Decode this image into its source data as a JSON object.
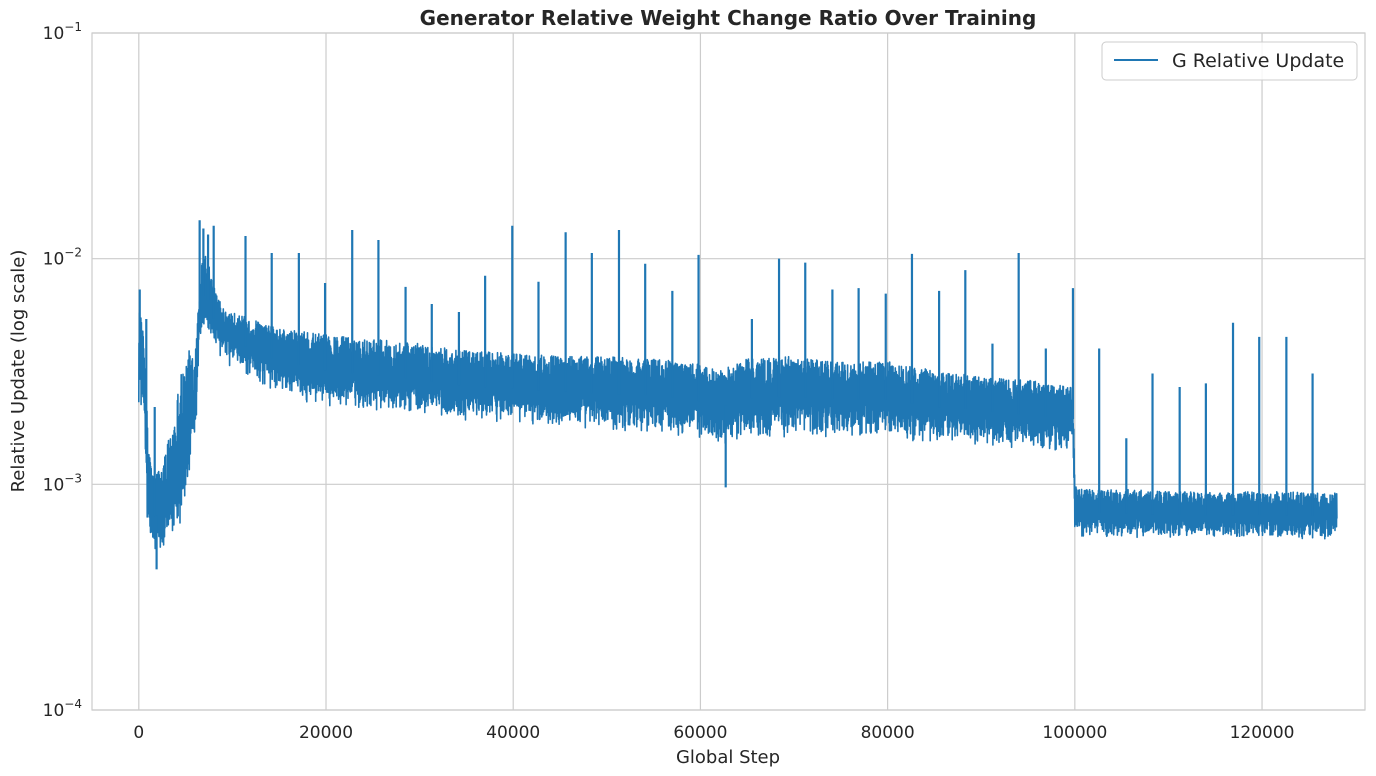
{
  "chart_data": {
    "type": "line",
    "title": "Generator Relative Weight Change Ratio Over Training",
    "xlabel": "Global Step",
    "ylabel": "Relative Update (log scale)",
    "xlim": [
      -5000,
      131000
    ],
    "ylim": [
      0.0001,
      0.1
    ],
    "yscale": "log",
    "grid": true,
    "legend_position": "top-right",
    "x_ticks": [
      0,
      20000,
      40000,
      60000,
      80000,
      100000,
      120000
    ],
    "x_tick_labels": [
      "0",
      "20000",
      "40000",
      "60000",
      "80000",
      "100000",
      "120000"
    ],
    "y_ticks": [
      0.0001,
      0.001,
      0.01,
      0.1
    ],
    "y_tick_labels": [
      {
        "base": "10",
        "exp": "−4"
      },
      {
        "base": "10",
        "exp": "−3"
      },
      {
        "base": "10",
        "exp": "−2"
      },
      {
        "base": "10",
        "exp": "−1"
      }
    ],
    "colors": {
      "series": "#1f77b4",
      "grid": "#cccccc",
      "spine": "#cccccc"
    },
    "series": [
      {
        "name": "G Relative Update",
        "band": {
          "x": [
            0,
            300,
            600,
            1000,
            1500,
            2000,
            2500,
            3000,
            3500,
            4000,
            4500,
            5000,
            5500,
            6000,
            6500,
            7000,
            7500,
            8000,
            9000,
            10000,
            12000,
            15000,
            20000,
            25000,
            30000,
            35000,
            40000,
            45000,
            50000,
            55000,
            60000,
            62000,
            65000,
            70000,
            75000,
            80000,
            85000,
            90000,
            95000,
            99800,
            100000,
            100500,
            105000,
            110000,
            115000,
            120000,
            125000,
            128000
          ],
          "upper": [
            0.0068,
            0.0055,
            0.004,
            0.0016,
            0.0011,
            0.00115,
            0.0012,
            0.0015,
            0.0018,
            0.0022,
            0.0035,
            0.0033,
            0.0042,
            0.0038,
            0.0085,
            0.011,
            0.0095,
            0.0075,
            0.0062,
            0.0058,
            0.0054,
            0.0049,
            0.0046,
            0.0044,
            0.0042,
            0.0039,
            0.0038,
            0.0037,
            0.0037,
            0.0036,
            0.0034,
            0.0032,
            0.0036,
            0.0037,
            0.0035,
            0.0035,
            0.0032,
            0.003,
            0.0029,
            0.0027,
            0.001,
            0.00095,
            0.00095,
            0.00093,
            0.00092,
            0.00093,
            0.00092,
            0.00092
          ],
          "lower": [
            0.0022,
            0.0021,
            0.0018,
            0.0005,
            0.00047,
            0.00046,
            0.00048,
            0.0005,
            0.00052,
            0.0006,
            0.00065,
            0.00075,
            0.001,
            0.0012,
            0.004,
            0.0046,
            0.0043,
            0.0039,
            0.0035,
            0.0033,
            0.0029,
            0.0025,
            0.0022,
            0.0021,
            0.002,
            0.0019,
            0.00185,
            0.0018,
            0.0017,
            0.0017,
            0.0016,
            0.0015,
            0.0016,
            0.0016,
            0.0016,
            0.0016,
            0.0015,
            0.0015,
            0.0014,
            0.0014,
            0.00062,
            0.00058,
            0.00058,
            0.00057,
            0.00057,
            0.00057,
            0.00057,
            0.00057
          ]
        },
        "spikes": {
          "x": [
            100,
            800,
            1700,
            11400,
            14200,
            17100,
            19900,
            22800,
            25600,
            28500,
            31300,
            34200,
            37000,
            39900,
            42700,
            45600,
            48400,
            51300,
            54100,
            57000,
            59800,
            65500,
            68400,
            71200,
            74100,
            76900,
            79800,
            82600,
            85500,
            88300,
            91200,
            94000,
            96900,
            99800,
            102600,
            105500,
            108300,
            111200,
            114000,
            116900,
            119700,
            122600,
            125400
          ],
          "y": [
            0.0073,
            0.0054,
            0.0022,
            0.0126,
            0.0106,
            0.0106,
            0.0078,
            0.0134,
            0.0121,
            0.0075,
            0.0063,
            0.0058,
            0.0084,
            0.014,
            0.0079,
            0.0131,
            0.0106,
            0.0134,
            0.0095,
            0.0072,
            0.0104,
            0.0054,
            0.01,
            0.0096,
            0.0073,
            0.0074,
            0.007,
            0.0105,
            0.0072,
            0.0089,
            0.0042,
            0.0106,
            0.004,
            0.0074,
            0.004,
            0.0016,
            0.0031,
            0.0027,
            0.0028,
            0.0052,
            0.0045,
            0.0045,
            0.0031
          ]
        },
        "early_peaks": {
          "x": [
            6500,
            6900,
            7400,
            8000
          ],
          "y": [
            0.0148,
            0.0136,
            0.0128,
            0.014
          ]
        },
        "dips": {
          "x": [
            1900,
            62700
          ],
          "y": [
            0.00042,
            0.00097
          ]
        }
      }
    ]
  }
}
